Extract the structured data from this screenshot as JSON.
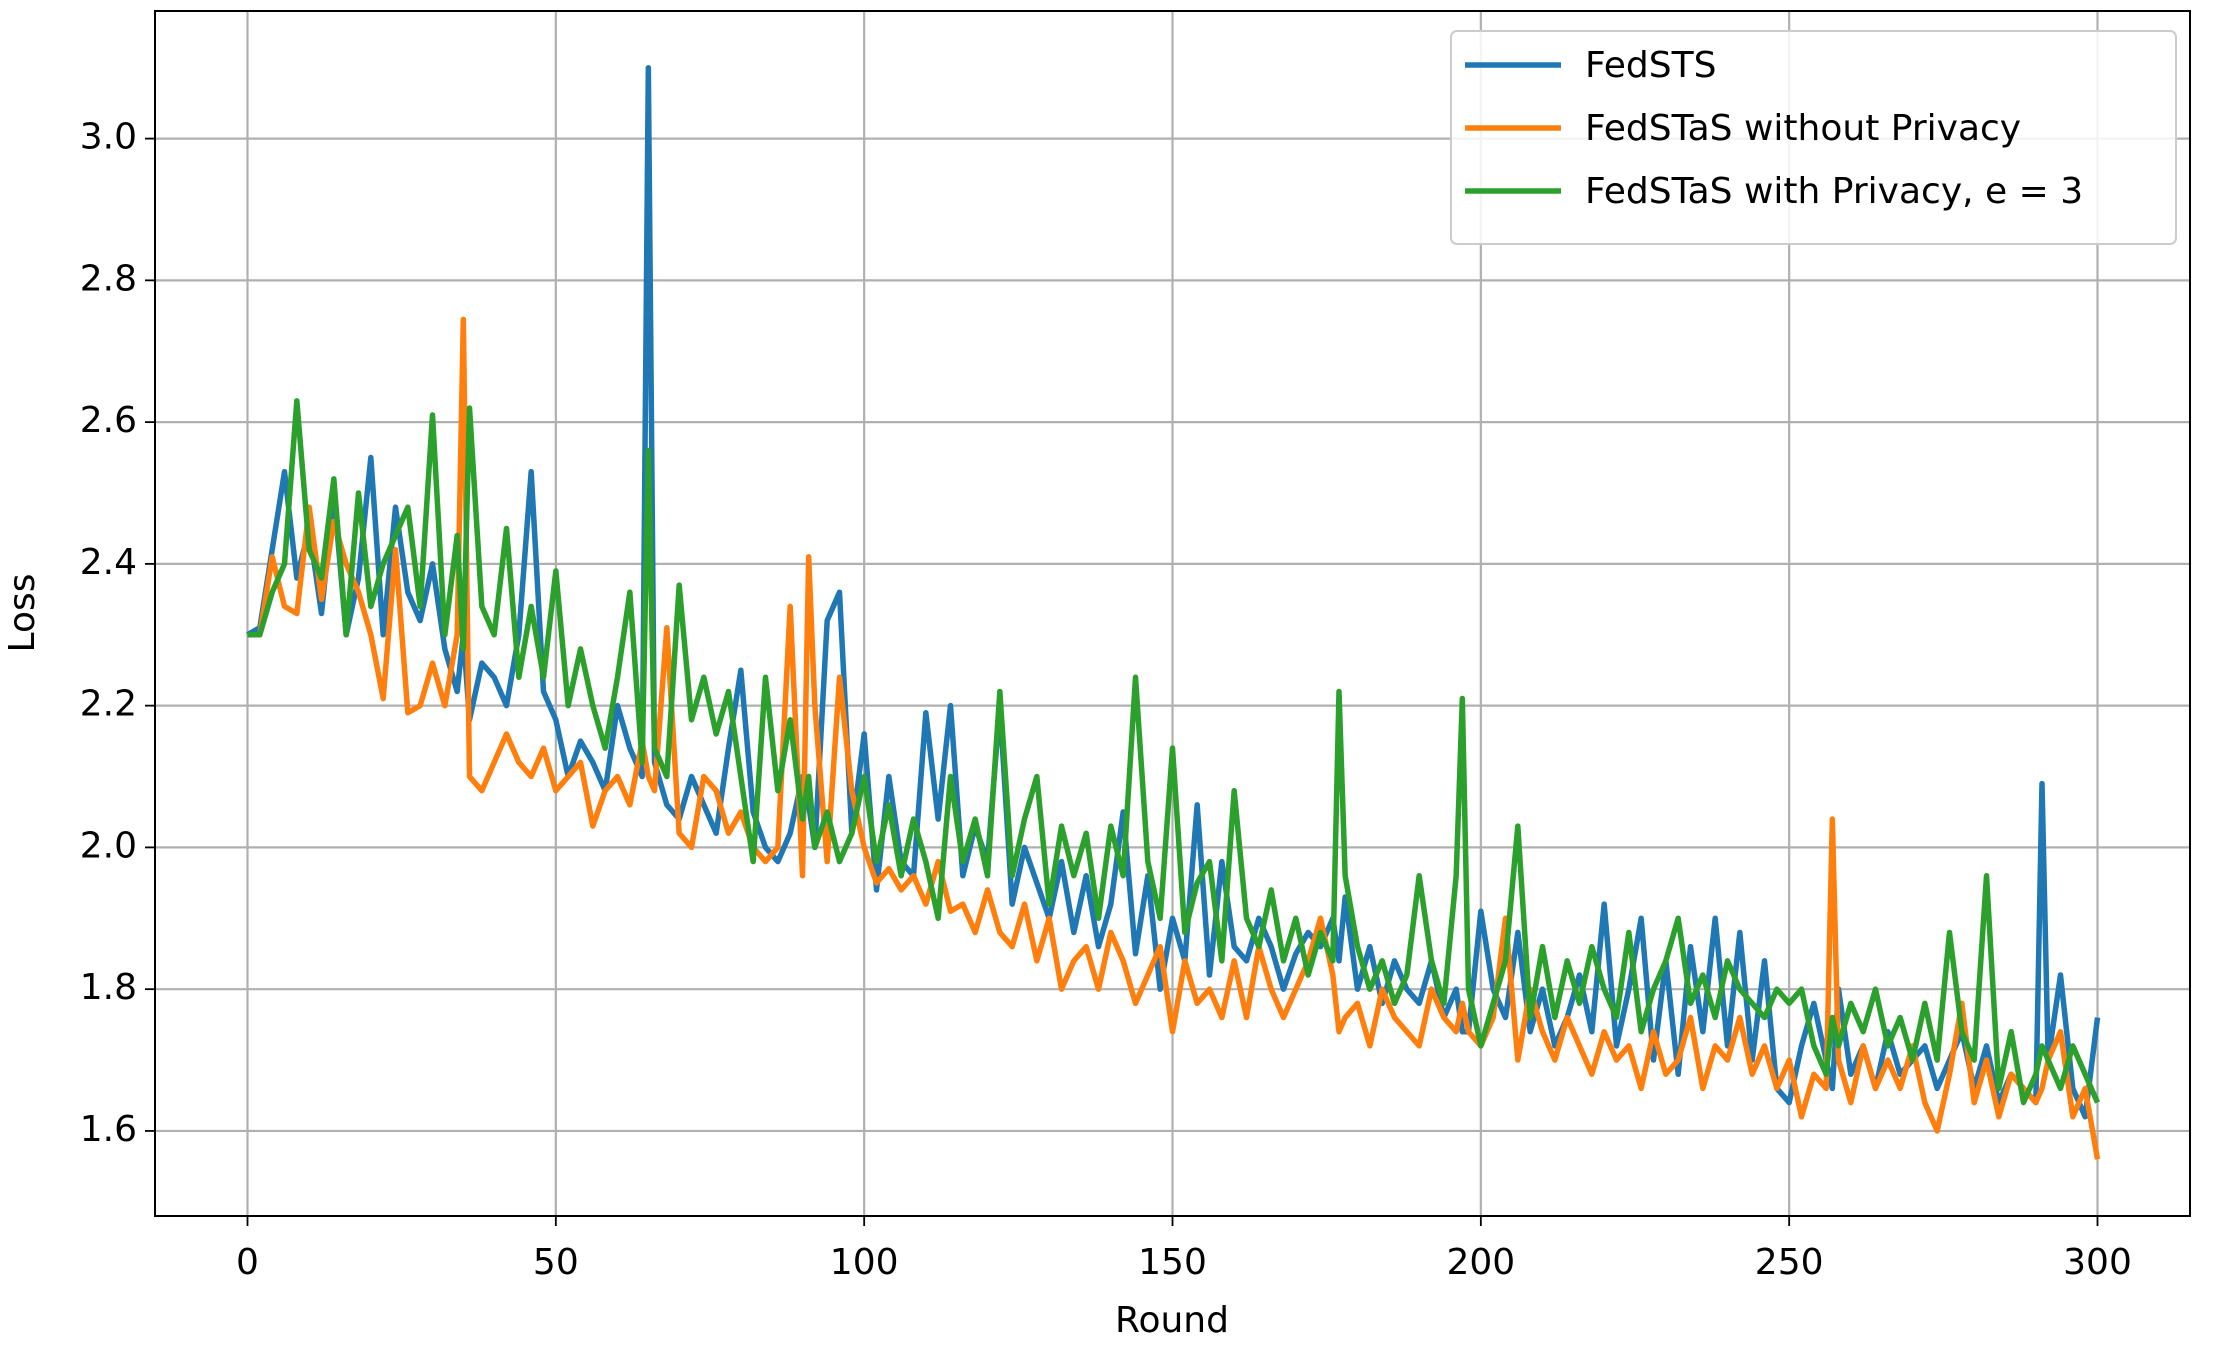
{
  "chart_data": {
    "type": "line",
    "x_label": "Round",
    "y_label": "Loss",
    "xlim": [
      -15,
      315
    ],
    "ylim": [
      1.48,
      3.18
    ],
    "xticks": [
      0,
      50,
      100,
      150,
      200,
      250,
      300
    ],
    "yticks": [
      1.6,
      1.8,
      {
        "value": 2,
        "label": "2.0"
      },
      2.2,
      2.4,
      2.6,
      2.8,
      {
        "value": 3,
        "label": "3.0"
      }
    ],
    "grid": true,
    "legend": "upper right",
    "x": [
      0,
      2,
      4,
      6,
      8,
      10,
      12,
      14,
      16,
      18,
      20,
      22,
      24,
      26,
      28,
      30,
      32,
      34,
      35,
      36,
      38,
      40,
      42,
      44,
      46,
      48,
      50,
      52,
      54,
      56,
      58,
      60,
      62,
      64,
      65,
      66,
      68,
      70,
      72,
      74,
      76,
      78,
      80,
      82,
      84,
      86,
      88,
      90,
      91,
      92,
      94,
      96,
      98,
      100,
      102,
      104,
      106,
      108,
      110,
      112,
      114,
      116,
      118,
      120,
      122,
      124,
      126,
      128,
      130,
      132,
      134,
      136,
      138,
      140,
      142,
      144,
      146,
      148,
      150,
      152,
      154,
      156,
      158,
      160,
      162,
      164,
      166,
      168,
      170,
      172,
      174,
      176,
      177,
      178,
      180,
      182,
      184,
      186,
      188,
      190,
      192,
      194,
      196,
      197,
      198,
      200,
      202,
      204,
      206,
      208,
      210,
      212,
      214,
      216,
      218,
      220,
      222,
      224,
      226,
      228,
      230,
      232,
      234,
      236,
      238,
      240,
      242,
      244,
      246,
      248,
      250,
      252,
      254,
      256,
      257,
      258,
      260,
      262,
      264,
      266,
      268,
      270,
      272,
      274,
      276,
      278,
      280,
      282,
      284,
      286,
      288,
      290,
      291,
      292,
      294,
      296,
      298,
      300
    ],
    "series": [
      {
        "name": "FedSTS",
        "color": "#1f77b4",
        "values": [
          2.3,
          2.31,
          2.42,
          2.53,
          2.38,
          2.45,
          2.33,
          2.5,
          2.3,
          2.38,
          2.55,
          2.3,
          2.48,
          2.36,
          2.32,
          2.4,
          2.28,
          2.22,
          2.3,
          2.18,
          2.26,
          2.24,
          2.2,
          2.3,
          2.53,
          2.22,
          2.18,
          2.1,
          2.15,
          2.12,
          2.08,
          2.2,
          2.14,
          2.1,
          3.1,
          2.12,
          2.06,
          2.04,
          2.1,
          2.06,
          2.02,
          2.14,
          2.25,
          2.05,
          2.0,
          1.98,
          2.02,
          2.1,
          2.06,
          2.0,
          2.32,
          2.36,
          2.02,
          2.16,
          1.94,
          2.1,
          1.98,
          1.96,
          2.19,
          2.04,
          2.2,
          1.96,
          2.03,
          1.98,
          2.2,
          1.92,
          2.0,
          1.95,
          1.9,
          1.98,
          1.88,
          1.96,
          1.86,
          1.92,
          2.05,
          1.85,
          1.96,
          1.8,
          1.9,
          1.84,
          2.06,
          1.82,
          1.98,
          1.86,
          1.84,
          1.9,
          1.86,
          1.8,
          1.85,
          1.88,
          1.86,
          1.9,
          1.84,
          1.93,
          1.8,
          1.86,
          1.78,
          1.84,
          1.8,
          1.78,
          1.84,
          1.76,
          1.8,
          1.74,
          1.74,
          1.91,
          1.8,
          1.76,
          1.88,
          1.74,
          1.8,
          1.72,
          1.76,
          1.82,
          1.74,
          1.92,
          1.72,
          1.8,
          1.9,
          1.7,
          1.84,
          1.68,
          1.86,
          1.74,
          1.9,
          1.72,
          1.88,
          1.7,
          1.84,
          1.66,
          1.64,
          1.72,
          1.78,
          1.7,
          1.66,
          1.8,
          1.68,
          1.72,
          1.66,
          1.74,
          1.68,
          1.7,
          1.72,
          1.66,
          1.7,
          1.74,
          1.66,
          1.72,
          1.64,
          1.68,
          1.66,
          1.64,
          2.09,
          1.7,
          1.82,
          1.66,
          1.62,
          1.76
        ]
      },
      {
        "name": "FedSTaS without Privacy",
        "color": "#ff7f0e",
        "values": [
          2.3,
          2.3,
          2.41,
          2.34,
          2.33,
          2.48,
          2.35,
          2.46,
          2.4,
          2.36,
          2.3,
          2.21,
          2.42,
          2.19,
          2.2,
          2.26,
          2.2,
          2.3,
          2.745,
          2.1,
          2.08,
          2.12,
          2.16,
          2.12,
          2.1,
          2.14,
          2.08,
          2.1,
          2.12,
          2.03,
          2.08,
          2.1,
          2.06,
          2.15,
          2.1,
          2.08,
          2.31,
          2.02,
          2.0,
          2.1,
          2.08,
          2.02,
          2.05,
          2.0,
          1.98,
          2.0,
          2.34,
          1.96,
          2.41,
          2.2,
          1.98,
          2.24,
          2.08,
          2.0,
          1.95,
          1.97,
          1.94,
          1.96,
          1.92,
          1.98,
          1.91,
          1.92,
          1.88,
          1.94,
          1.88,
          1.86,
          1.92,
          1.84,
          1.9,
          1.8,
          1.84,
          1.86,
          1.8,
          1.88,
          1.84,
          1.78,
          1.82,
          1.86,
          1.74,
          1.84,
          1.78,
          1.8,
          1.76,
          1.84,
          1.76,
          1.86,
          1.8,
          1.76,
          1.8,
          1.84,
          1.9,
          1.82,
          1.74,
          1.76,
          1.78,
          1.72,
          1.8,
          1.76,
          1.74,
          1.72,
          1.8,
          1.76,
          1.74,
          1.78,
          1.74,
          1.72,
          1.76,
          1.9,
          1.7,
          1.8,
          1.74,
          1.7,
          1.76,
          1.72,
          1.68,
          1.74,
          1.7,
          1.72,
          1.66,
          1.74,
          1.68,
          1.7,
          1.76,
          1.66,
          1.72,
          1.7,
          1.76,
          1.68,
          1.72,
          1.66,
          1.7,
          1.62,
          1.68,
          1.66,
          2.04,
          1.7,
          1.64,
          1.72,
          1.66,
          1.7,
          1.66,
          1.72,
          1.64,
          1.6,
          1.68,
          1.78,
          1.64,
          1.7,
          1.62,
          1.68,
          1.66,
          1.64,
          1.66,
          1.7,
          1.74,
          1.62,
          1.66,
          1.56
        ]
      },
      {
        "name": "FedSTaS with Privacy, e = 3",
        "color": "#2ca02c",
        "values": [
          2.3,
          2.3,
          2.36,
          2.4,
          2.63,
          2.42,
          2.38,
          2.52,
          2.3,
          2.5,
          2.34,
          2.4,
          2.44,
          2.48,
          2.34,
          2.61,
          2.3,
          2.44,
          2.28,
          2.62,
          2.34,
          2.3,
          2.45,
          2.24,
          2.34,
          2.24,
          2.39,
          2.2,
          2.28,
          2.2,
          2.14,
          2.24,
          2.36,
          2.12,
          2.56,
          2.14,
          2.1,
          2.37,
          2.18,
          2.24,
          2.16,
          2.22,
          2.1,
          1.98,
          2.24,
          2.08,
          2.18,
          2.04,
          2.1,
          2.0,
          2.05,
          1.98,
          2.02,
          2.1,
          1.98,
          2.06,
          1.96,
          2.04,
          1.98,
          1.9,
          2.1,
          1.98,
          2.04,
          1.96,
          2.22,
          1.96,
          2.04,
          2.1,
          1.92,
          2.03,
          1.96,
          2.02,
          1.9,
          2.03,
          1.96,
          2.24,
          1.98,
          1.9,
          2.14,
          1.88,
          1.95,
          1.98,
          1.84,
          2.08,
          1.9,
          1.86,
          1.94,
          1.84,
          1.9,
          1.82,
          1.88,
          1.84,
          2.22,
          1.96,
          1.86,
          1.8,
          1.84,
          1.78,
          1.82,
          1.96,
          1.84,
          1.78,
          1.96,
          2.21,
          1.8,
          1.72,
          1.78,
          1.84,
          2.03,
          1.76,
          1.86,
          1.76,
          1.84,
          1.78,
          1.86,
          1.8,
          1.76,
          1.88,
          1.74,
          1.8,
          1.84,
          1.9,
          1.78,
          1.82,
          1.76,
          1.84,
          1.8,
          1.78,
          1.76,
          1.8,
          1.78,
          1.8,
          1.72,
          1.68,
          1.76,
          1.72,
          1.78,
          1.74,
          1.8,
          1.72,
          1.76,
          1.7,
          1.78,
          1.7,
          1.88,
          1.74,
          1.7,
          1.96,
          1.66,
          1.74,
          1.64,
          1.68,
          1.72,
          1.7,
          1.66,
          1.72,
          1.68,
          1.64
        ]
      }
    ]
  }
}
